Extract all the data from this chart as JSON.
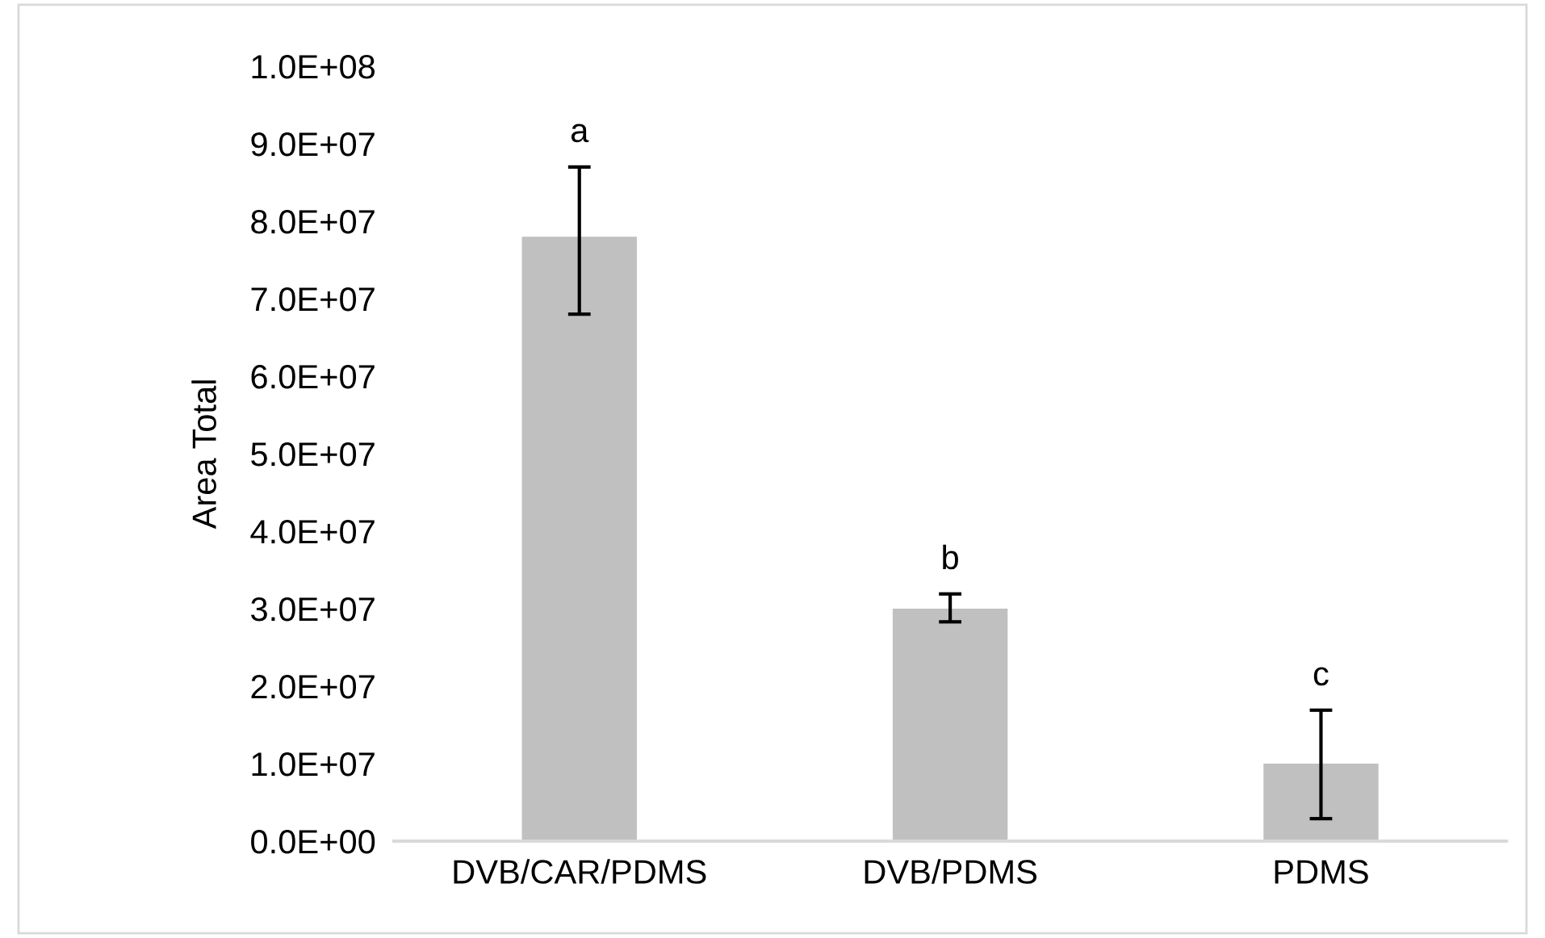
{
  "chart_data": {
    "type": "bar",
    "ylabel": "Area Total",
    "categories": [
      "DVB/CAR/PDMS",
      "DVB/PDMS",
      "PDMS"
    ],
    "values": [
      78000000,
      30000000,
      10000000
    ],
    "errors": [
      [
        68000000,
        87000000
      ],
      [
        28300000,
        31900000
      ],
      [
        2900000,
        16900000
      ]
    ],
    "color": "#c0c0c0",
    "ylim": [
      0,
      100000000
    ],
    "yticks": [
      {
        "value": 0,
        "label": "0.0E+00"
      },
      {
        "value": 10000000,
        "label": "1.0E+07"
      },
      {
        "value": 20000000,
        "label": "2.0E+07"
      },
      {
        "value": 30000000,
        "label": "3.0E+07"
      },
      {
        "value": 40000000,
        "label": "4.0E+07"
      },
      {
        "value": 50000000,
        "label": "5.0E+07"
      },
      {
        "value": 60000000,
        "label": "6.0E+07"
      },
      {
        "value": 70000000,
        "label": "7.0E+07"
      },
      {
        "value": 80000000,
        "label": "8.0E+07"
      },
      {
        "value": 90000000,
        "label": "9.0E+07"
      },
      {
        "value": 100000000,
        "label": "1.0E+08"
      }
    ],
    "annotations": [
      "a",
      "b",
      "c"
    ],
    "grid": false
  }
}
